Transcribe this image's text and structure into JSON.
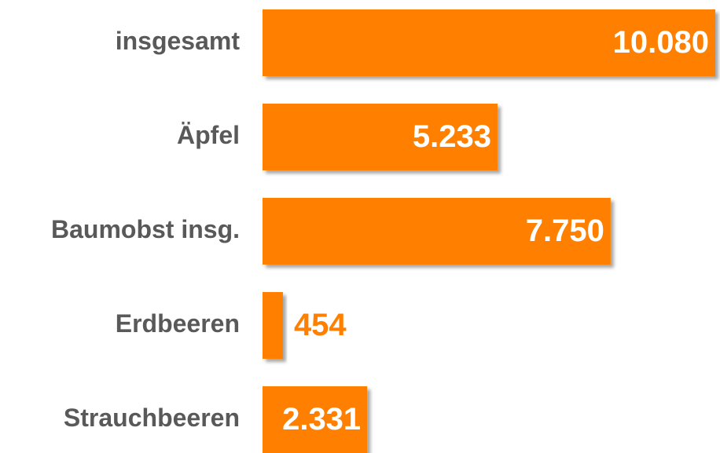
{
  "chart_data": {
    "type": "bar",
    "orientation": "horizontal",
    "categories": [
      "insgesamt",
      "Äpfel",
      "Baumobst insg.",
      "Erdbeeren",
      "Strauchbeeren"
    ],
    "values": [
      10080,
      5233,
      7750,
      454,
      2331
    ],
    "value_labels": [
      "10.080",
      "5.233",
      "7.750",
      "454",
      "2.331"
    ],
    "color": "#ff8000"
  }
}
